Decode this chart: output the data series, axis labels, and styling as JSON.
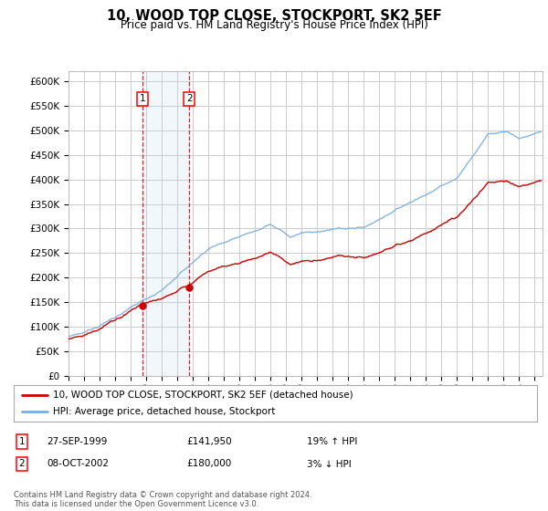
{
  "title": "10, WOOD TOP CLOSE, STOCKPORT, SK2 5EF",
  "subtitle": "Price paid vs. HM Land Registry's House Price Index (HPI)",
  "ylim": [
    0,
    620000
  ],
  "yticks": [
    0,
    50000,
    100000,
    150000,
    200000,
    250000,
    300000,
    350000,
    400000,
    450000,
    500000,
    550000,
    600000
  ],
  "ytick_labels": [
    "£0",
    "£50K",
    "£100K",
    "£150K",
    "£200K",
    "£250K",
    "£300K",
    "£350K",
    "£400K",
    "£450K",
    "£500K",
    "£550K",
    "£600K"
  ],
  "hpi_color": "#7aaedd",
  "price_color": "#cc0000",
  "background_color": "#ffffff",
  "grid_color": "#cccccc",
  "marker1_year": 1999.75,
  "marker2_year": 2002.77,
  "marker1_price": 141950,
  "marker2_price": 180000,
  "sale1_label": "1",
  "sale2_label": "2",
  "legend1": "10, WOOD TOP CLOSE, STOCKPORT, SK2 5EF (detached house)",
  "legend2": "HPI: Average price, detached house, Stockport",
  "table_row1": [
    "1",
    "27-SEP-1999",
    "£141,950",
    "19% ↑ HPI"
  ],
  "table_row2": [
    "2",
    "08-OCT-2002",
    "£180,000",
    "3% ↓ HPI"
  ],
  "footer": "Contains HM Land Registry data © Crown copyright and database right 2024.\nThis data is licensed under the Open Government Licence v3.0.",
  "xlim_start": 1995,
  "xlim_end": 2025.5
}
